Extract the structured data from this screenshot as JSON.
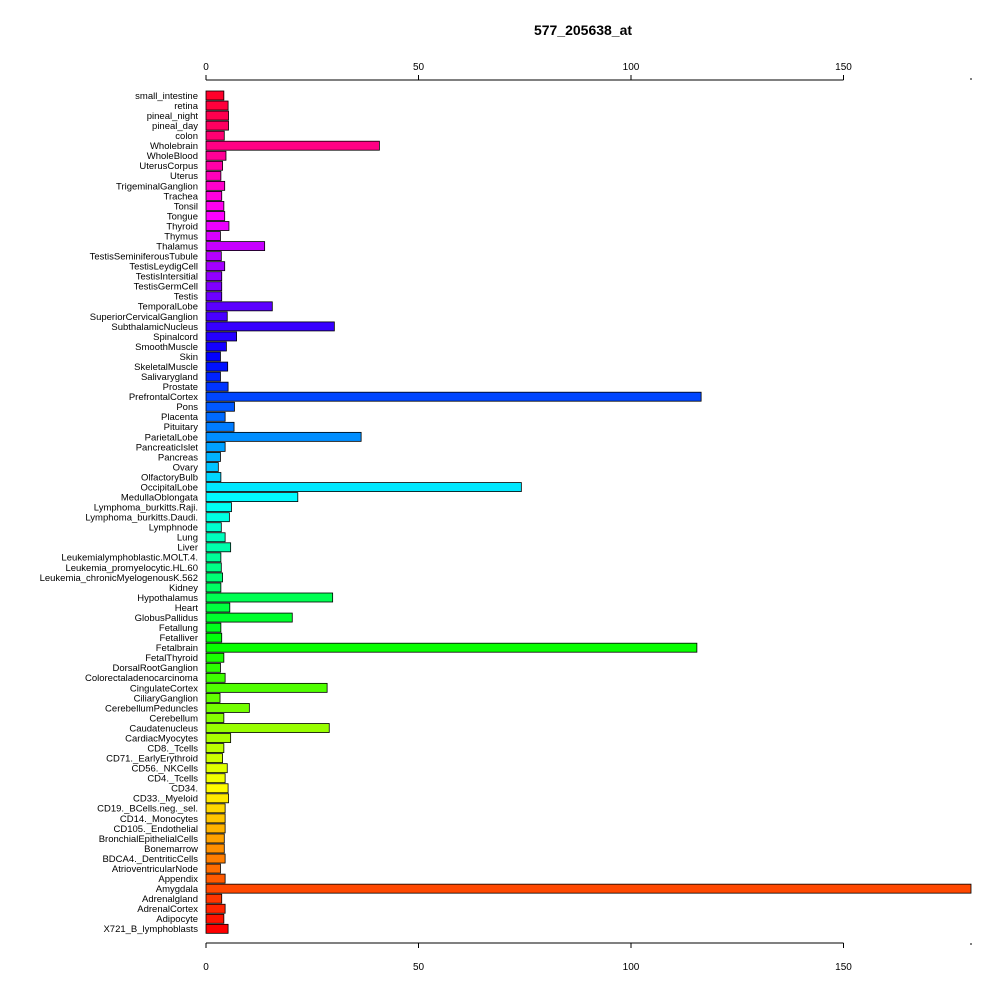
{
  "chart_data": {
    "type": "bar",
    "orientation": "horizontal",
    "title": "577_205638_at",
    "xlabel": "",
    "ylabel": "",
    "xlim": [
      0,
      180
    ],
    "xticks": [
      0,
      50,
      100,
      150
    ],
    "grid": false,
    "legend": "none",
    "categories": [
      "small_intestine",
      "retina",
      "pineal_night",
      "pineal_day",
      "colon",
      "Wholebrain",
      "WholeBlood",
      "UterusCorpus",
      "Uterus",
      "TrigeminalGanglion",
      "Trachea",
      "Tonsil",
      "Tongue",
      "Thyroid",
      "Thymus",
      "Thalamus",
      "TestisSeminiferousTubule",
      "TestisLeydigCell",
      "TestisIntersitial",
      "TestisGermCell",
      "Testis",
      "TemporalLobe",
      "SuperiorCervicalGanglion",
      "SubthalamicNucleus",
      "Spinalcord",
      "SmoothMuscle",
      "Skin",
      "SkeletalMuscle",
      "Salivarygland",
      "Prostate",
      "PrefrontalCortex",
      "Pons",
      "Placenta",
      "Pituitary",
      "ParietalLobe",
      "PancreaticIslet",
      "Pancreas",
      "Ovary",
      "OlfactoryBulb",
      "OccipitalLobe",
      "MedullaOblongata",
      "Lymphoma_burkitts.Raji.",
      "Lymphoma_burkitts.Daudi.",
      "Lymphnode",
      "Lung",
      "Liver",
      "Leukemialymphoblastic.MOLT.4.",
      "Leukemia_promyelocytic.HL.60",
      "Leukemia_chronicMyelogenousK.562",
      "Kidney",
      "Hypothalamus",
      "Heart",
      "GlobusPallidus",
      "Fetallung",
      "Fetalliver",
      "Fetalbrain",
      "FetalThyroid",
      "DorsalRootGanglion",
      "Colorectaladenocarcinoma",
      "CingulateCortex",
      "CiliaryGanglion",
      "CerebellumPeduncles",
      "Cerebellum",
      "Caudatenucleus",
      "CardiacMyocytes",
      "CD8._Tcells",
      "CD71._EarlyErythroid",
      "CD56._NKCells",
      "CD4._Tcells",
      "CD34.",
      "CD33._Myeloid",
      "CD19._BCells.neg._sel.",
      "CD14._Monocytes",
      "CD105._Endothelial",
      "BronchialEpithelialCells",
      "Bonemarrow",
      "BDCA4._DentriticCells",
      "AtrioventricularNode",
      "Appendix",
      "Amygdala",
      "Adrenalgland",
      "AdrenalCortex",
      "Adipocyte",
      "X721_B_lymphoblasts"
    ],
    "values": [
      4.2,
      5.2,
      5.3,
      5.3,
      4.3,
      40.8,
      4.7,
      3.9,
      3.5,
      4.4,
      3.7,
      4.2,
      4.4,
      5.4,
      3.4,
      13.8,
      3.6,
      4.4,
      3.7,
      3.7,
      3.7,
      15.6,
      5.0,
      30.2,
      7.2,
      4.8,
      3.4,
      5.1,
      3.4,
      5.2,
      116.5,
      6.7,
      4.5,
      6.6,
      36.5,
      4.5,
      3.4,
      2.9,
      3.5,
      74.2,
      21.6,
      6.0,
      5.5,
      3.6,
      4.5,
      5.8,
      3.5,
      3.6,
      3.9,
      3.5,
      29.8,
      5.6,
      20.3,
      3.5,
      3.7,
      115.5,
      4.2,
      3.4,
      4.5,
      28.5,
      3.3,
      10.2,
      4.2,
      29.0,
      5.8,
      4.2,
      3.9,
      5.0,
      4.5,
      5.2,
      5.3,
      4.5,
      4.5,
      4.5,
      4.3,
      4.3,
      4.5,
      3.4,
      4.5,
      180.0,
      3.7,
      4.5,
      4.2,
      5.2
    ]
  }
}
